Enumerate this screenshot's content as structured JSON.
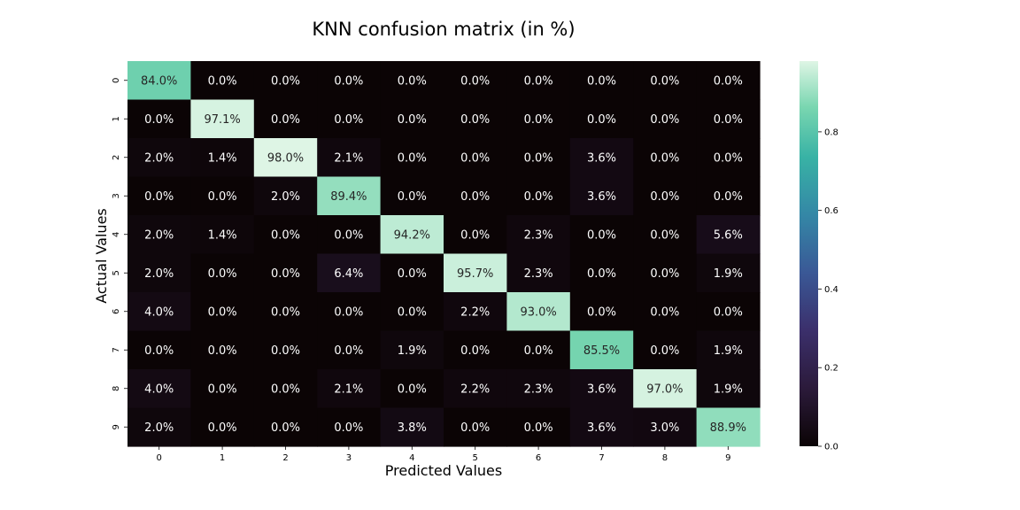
{
  "chart_data": {
    "type": "heatmap",
    "title": "KNN confusion matrix (in %)",
    "xlabel": "Predicted Values",
    "ylabel": "Actual Values",
    "x_categories": [
      "0",
      "1",
      "2",
      "3",
      "4",
      "5",
      "6",
      "7",
      "8",
      "9"
    ],
    "y_categories": [
      "0",
      "1",
      "2",
      "3",
      "4",
      "5",
      "6",
      "7",
      "8",
      "9"
    ],
    "values": [
      [
        0.84,
        0.0,
        0.0,
        0.0,
        0.0,
        0.0,
        0.0,
        0.0,
        0.0,
        0.0
      ],
      [
        0.0,
        0.971,
        0.0,
        0.0,
        0.0,
        0.0,
        0.0,
        0.0,
        0.0,
        0.0
      ],
      [
        0.02,
        0.014,
        0.98,
        0.021,
        0.0,
        0.0,
        0.0,
        0.036,
        0.0,
        0.0
      ],
      [
        0.0,
        0.0,
        0.02,
        0.894,
        0.0,
        0.0,
        0.0,
        0.036,
        0.0,
        0.0
      ],
      [
        0.02,
        0.014,
        0.0,
        0.0,
        0.942,
        0.0,
        0.023,
        0.0,
        0.0,
        0.056
      ],
      [
        0.02,
        0.0,
        0.0,
        0.064,
        0.0,
        0.957,
        0.023,
        0.0,
        0.0,
        0.019
      ],
      [
        0.04,
        0.0,
        0.0,
        0.0,
        0.0,
        0.022,
        0.93,
        0.0,
        0.0,
        0.0
      ],
      [
        0.0,
        0.0,
        0.0,
        0.0,
        0.019,
        0.0,
        0.0,
        0.855,
        0.0,
        0.019
      ],
      [
        0.04,
        0.0,
        0.0,
        0.021,
        0.0,
        0.022,
        0.023,
        0.036,
        0.97,
        0.019
      ],
      [
        0.02,
        0.0,
        0.0,
        0.0,
        0.038,
        0.0,
        0.0,
        0.036,
        0.03,
        0.889
      ]
    ],
    "annotations": [
      [
        "84.0%",
        "0.0%",
        "0.0%",
        "0.0%",
        "0.0%",
        "0.0%",
        "0.0%",
        "0.0%",
        "0.0%",
        "0.0%"
      ],
      [
        "0.0%",
        "97.1%",
        "0.0%",
        "0.0%",
        "0.0%",
        "0.0%",
        "0.0%",
        "0.0%",
        "0.0%",
        "0.0%"
      ],
      [
        "2.0%",
        "1.4%",
        "98.0%",
        "2.1%",
        "0.0%",
        "0.0%",
        "0.0%",
        "3.6%",
        "0.0%",
        "0.0%"
      ],
      [
        "0.0%",
        "0.0%",
        "2.0%",
        "89.4%",
        "0.0%",
        "0.0%",
        "0.0%",
        "3.6%",
        "0.0%",
        "0.0%"
      ],
      [
        "2.0%",
        "1.4%",
        "0.0%",
        "0.0%",
        "94.2%",
        "0.0%",
        "2.3%",
        "0.0%",
        "0.0%",
        "5.6%"
      ],
      [
        "2.0%",
        "0.0%",
        "0.0%",
        "6.4%",
        "0.0%",
        "95.7%",
        "2.3%",
        "0.0%",
        "0.0%",
        "1.9%"
      ],
      [
        "4.0%",
        "0.0%",
        "0.0%",
        "0.0%",
        "0.0%",
        "2.2%",
        "93.0%",
        "0.0%",
        "0.0%",
        "0.0%"
      ],
      [
        "0.0%",
        "0.0%",
        "0.0%",
        "0.0%",
        "1.9%",
        "0.0%",
        "0.0%",
        "85.5%",
        "0.0%",
        "1.9%"
      ],
      [
        "4.0%",
        "0.0%",
        "0.0%",
        "2.1%",
        "0.0%",
        "2.2%",
        "2.3%",
        "3.6%",
        "97.0%",
        "1.9%"
      ],
      [
        "2.0%",
        "0.0%",
        "0.0%",
        "0.0%",
        "3.8%",
        "0.0%",
        "0.0%",
        "3.6%",
        "3.0%",
        "88.9%"
      ]
    ],
    "colorbar": {
      "colormap": "mako",
      "range": [
        0,
        0.98
      ],
      "ticks": [
        0.0,
        0.2,
        0.4,
        0.6,
        0.8
      ],
      "tick_labels": [
        "0.0",
        "0.2",
        "0.4",
        "0.6",
        "0.8"
      ]
    },
    "grid": false,
    "legend": "none"
  }
}
